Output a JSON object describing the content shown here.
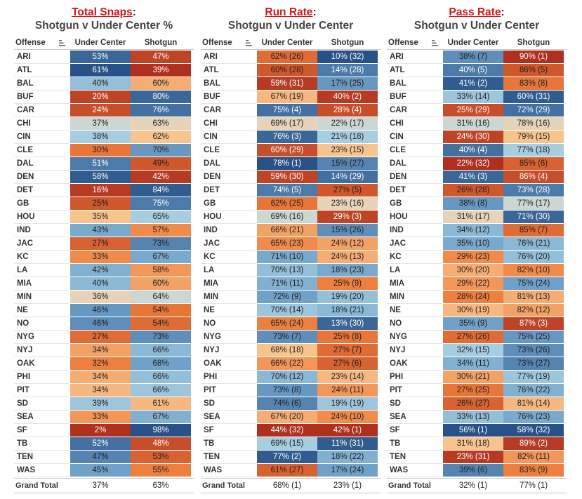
{
  "teams": [
    "ARI",
    "ATL",
    "BAL",
    "BUF",
    "CAR",
    "CHI",
    "CIN",
    "CLE",
    "DAL",
    "DEN",
    "DET",
    "GB",
    "HOU",
    "IND",
    "JAC",
    "KC",
    "LA",
    "MIA",
    "MIN",
    "NE",
    "NO",
    "NYG",
    "NYJ",
    "OAK",
    "PHI",
    "PIT",
    "SD",
    "SEA",
    "SF",
    "TB",
    "TEN",
    "WAS"
  ],
  "panels": [
    {
      "title_red": "Total Snaps",
      "title_colon": ":",
      "subtitle": "Shotgun v Under Center %",
      "header_offense": "Offense",
      "header_uc": "Under Center",
      "header_sg": "Shotgun",
      "total_label": "Grand Total",
      "total_uc": "37%",
      "total_sg": "63%"
    },
    {
      "title_red": "Run Rate",
      "title_colon": ":",
      "subtitle": "Shotgun v Under Center",
      "header_offense": "Offense",
      "header_uc": "Under Center",
      "header_sg": "Shotgun",
      "total_label": "Grand Total",
      "total_uc": "68% (1)",
      "total_sg": "23% (1)"
    },
    {
      "title_red": "Pass Rate",
      "title_colon": ":",
      "subtitle": "Shotgun v Under Center",
      "header_offense": "Offense",
      "header_uc": "Under Center",
      "header_sg": "Shotgun",
      "total_label": "Grand Total",
      "total_uc": "32% (1)",
      "total_sg": "77% (1)"
    }
  ],
  "sort_icon": "sort-descending-icon",
  "chart_data": [
    {
      "type": "table",
      "title": "Total Snaps: Shotgun v Under Center %",
      "columns": [
        "Offense",
        "Under Center",
        "Shotgun"
      ],
      "under_center": [
        53,
        61,
        40,
        20,
        24,
        37,
        38,
        30,
        51,
        58,
        16,
        25,
        35,
        43,
        27,
        33,
        42,
        40,
        36,
        46,
        46,
        27,
        34,
        32,
        34,
        34,
        39,
        33,
        2,
        52,
        47,
        45
      ],
      "shotgun": [
        47,
        39,
        60,
        80,
        76,
        63,
        62,
        70,
        49,
        42,
        84,
        75,
        65,
        57,
        73,
        67,
        58,
        60,
        64,
        54,
        54,
        73,
        66,
        68,
        66,
        66,
        61,
        67,
        98,
        48,
        53,
        55
      ],
      "grand_total": {
        "under_center": 37,
        "shotgun": 63
      }
    },
    {
      "type": "table",
      "title": "Run Rate: Shotgun v Under Center",
      "columns": [
        "Offense",
        "Under Center",
        "Shotgun"
      ],
      "under_center": [
        62,
        60,
        59,
        67,
        75,
        69,
        76,
        60,
        78,
        59,
        74,
        62,
        69,
        66,
        65,
        71,
        70,
        71,
        72,
        70,
        65,
        73,
        68,
        66,
        70,
        73,
        74,
        67,
        44,
        69,
        77,
        61
      ],
      "under_center_rank": [
        26,
        28,
        31,
        19,
        4,
        17,
        3,
        29,
        1,
        30,
        5,
        25,
        16,
        21,
        23,
        10,
        13,
        11,
        9,
        14,
        24,
        7,
        18,
        22,
        12,
        8,
        6,
        20,
        32,
        15,
        2,
        27
      ],
      "shotgun": [
        10,
        14,
        17,
        40,
        28,
        22,
        21,
        23,
        15,
        14,
        27,
        23,
        29,
        15,
        24,
        24,
        18,
        25,
        19,
        18,
        13,
        25,
        27,
        27,
        23,
        24,
        19,
        24,
        42,
        11,
        18,
        17
      ],
      "shotgun_rank": [
        32,
        28,
        25,
        2,
        4,
        17,
        18,
        15,
        27,
        29,
        5,
        16,
        3,
        26,
        12,
        13,
        23,
        9,
        20,
        21,
        30,
        8,
        7,
        6,
        14,
        11,
        19,
        10,
        1,
        31,
        22,
        24
      ],
      "grand_total": {
        "under_center": 68,
        "under_center_rank": 1,
        "shotgun": 23,
        "shotgun_rank": 1
      }
    },
    {
      "type": "table",
      "title": "Pass Rate: Shotgun v Under Center",
      "columns": [
        "Offense",
        "Under Center",
        "Shotgun"
      ],
      "under_center": [
        38,
        40,
        41,
        33,
        25,
        31,
        24,
        40,
        22,
        41,
        26,
        38,
        31,
        34,
        35,
        29,
        30,
        29,
        28,
        30,
        35,
        27,
        32,
        34,
        30,
        27,
        26,
        33,
        56,
        31,
        23,
        39
      ],
      "under_center_rank": [
        7,
        5,
        2,
        14,
        29,
        16,
        30,
        4,
        32,
        3,
        28,
        8,
        17,
        12,
        10,
        23,
        20,
        22,
        24,
        19,
        9,
        26,
        15,
        11,
        21,
        25,
        27,
        13,
        1,
        18,
        31,
        6
      ],
      "shotgun": [
        90,
        86,
        83,
        60,
        72,
        78,
        79,
        77,
        85,
        86,
        73,
        77,
        71,
        85,
        76,
        76,
        82,
        75,
        81,
        82,
        87,
        75,
        73,
        73,
        77,
        76,
        81,
        76,
        58,
        89,
        82,
        83
      ],
      "shotgun_rank": [
        1,
        5,
        8,
        31,
        29,
        16,
        15,
        18,
        6,
        4,
        28,
        17,
        30,
        7,
        21,
        20,
        10,
        24,
        13,
        12,
        3,
        25,
        26,
        27,
        19,
        22,
        14,
        23,
        32,
        2,
        11,
        9
      ],
      "grand_total": {
        "under_center": 32,
        "under_center_rank": 1,
        "shotgun": 77,
        "shotgun_rank": 1
      }
    }
  ]
}
